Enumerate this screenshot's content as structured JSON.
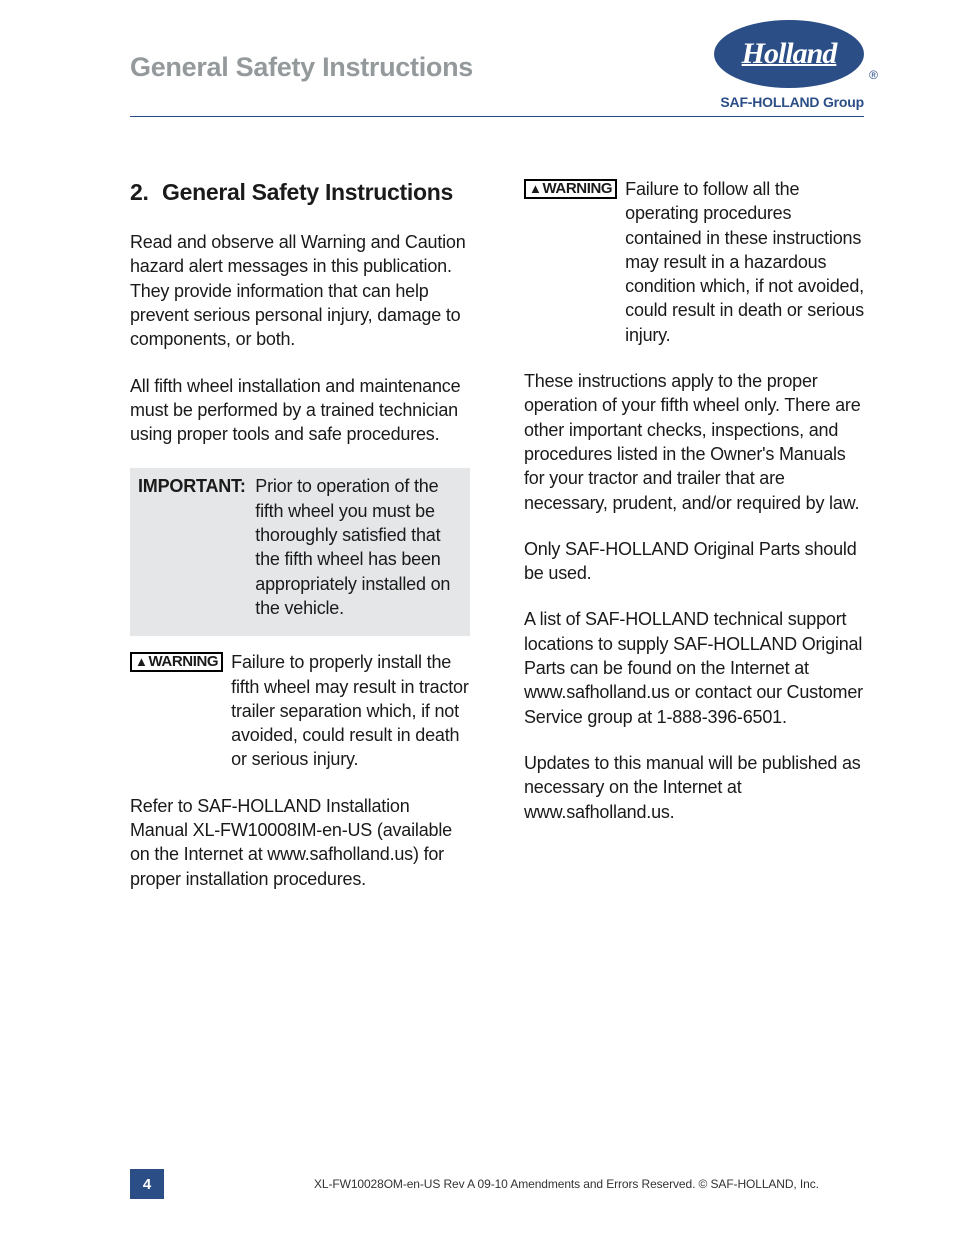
{
  "header": {
    "title": "General Safety Instructions",
    "logo_text": "Holland",
    "logo_sub": "SAF-HOLLAND Group",
    "logo_reg": "®",
    "logo_bg": "#2b4e87",
    "logo_text_color": "#ffffff"
  },
  "section": {
    "number": "2.",
    "title": "General Safety Instructions"
  },
  "left": {
    "p1": "Read and observe all Warning and Caution hazard alert messages in this publication. They provide information that can help prevent serious personal injury, damage to components, or both.",
    "p2": "All fifth wheel installation and maintenance must be performed by  a trained technician using proper tools and safe procedures.",
    "important_label": "IMPORTANT:  ",
    "important_text": "Prior to operation of the fifth wheel you must be thoroughly satisfied that the fifth wheel has been appropriately installed on the vehicle.",
    "warning_label": "WARNING",
    "warning_text": "Failure to properly install the fifth wheel may result in tractor trailer separation which, if not avoided, could result in death or serious injury.",
    "p3": "Refer to SAF-HOLLAND Installation Manual XL-FW10008IM-en-US (available on the Internet at www.safholland.us) for proper installation procedures."
  },
  "right": {
    "warning_label": "WARNING",
    "warning_text": "Failure to follow all the operating procedures contained in these instructions may result in a hazardous condition which, if not avoided, could result in death or serious injury.",
    "p1": "These instructions apply to the proper operation of your fifth wheel only. There are other important checks, inspections, and procedures listed in the Owner's Manuals for your tractor and trailer that are necessary, prudent, and/or required by law.",
    "p2": "Only SAF-HOLLAND Original Parts should be used.",
    "p3": "A list of SAF-HOLLAND technical support locations to supply SAF-HOLLAND Original Parts can be found on the Internet at www.safholland.us or contact our Customer Service group at 1-888-396-6501.",
    "p4": "Updates to this manual will be published as necessary on the Internet at www.safholland.us."
  },
  "footer": {
    "page_number": "4",
    "text": "XL-FW10028OM-en-US Rev A   09-10   Amendments and Errors Reserved.   ©   SAF-HOLLAND, Inc."
  },
  "colors": {
    "header_title": "#94999c",
    "header_rule": "#2a4c82",
    "text": "#1a1a1a",
    "important_bg": "#e5e6e7",
    "accent": "#2b4e87"
  }
}
